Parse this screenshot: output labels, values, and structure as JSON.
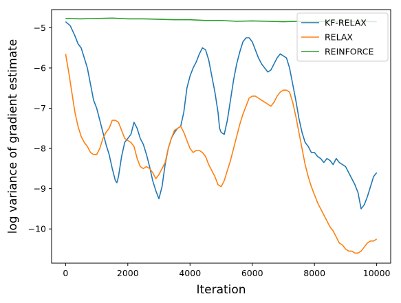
{
  "chart_data": {
    "type": "line",
    "title": "",
    "xlabel": "Iteration",
    "ylabel": "log variance of gradient estimate",
    "xlim": [
      -450,
      10450
    ],
    "ylim": [
      -10.85,
      -4.55
    ],
    "xticks": [
      0,
      2000,
      4000,
      6000,
      8000,
      10000
    ],
    "yticks": [
      -10,
      -9,
      -8,
      -7,
      -6,
      -5
    ],
    "legend_position": "top-right",
    "grid": false,
    "series": [
      {
        "name": "KF-RELAX",
        "color": "#1f77b4",
        "x": [
          0,
          150,
          300,
          400,
          500,
          600,
          700,
          800,
          900,
          1000,
          1100,
          1200,
          1300,
          1400,
          1500,
          1600,
          1650,
          1700,
          1800,
          1900,
          2000,
          2100,
          2200,
          2300,
          2400,
          2500,
          2600,
          2700,
          2800,
          2900,
          3000,
          3100,
          3200,
          3300,
          3400,
          3500,
          3600,
          3700,
          3800,
          3900,
          4000,
          4100,
          4200,
          4300,
          4400,
          4500,
          4600,
          4700,
          4800,
          4900,
          4950,
          5000,
          5100,
          5200,
          5300,
          5400,
          5500,
          5600,
          5700,
          5800,
          5900,
          6000,
          6100,
          6200,
          6300,
          6400,
          6500,
          6600,
          6700,
          6800,
          6900,
          7000,
          7100,
          7200,
          7300,
          7400,
          7500,
          7600,
          7700,
          7800,
          7900,
          8000,
          8100,
          8200,
          8300,
          8400,
          8500,
          8600,
          8700,
          8800,
          8900,
          9000,
          9100,
          9200,
          9300,
          9400,
          9500,
          9600,
          9700,
          9800,
          9900,
          10000
        ],
        "values": [
          -4.85,
          -4.95,
          -5.2,
          -5.4,
          -5.5,
          -5.75,
          -6.0,
          -6.4,
          -6.8,
          -7.0,
          -7.3,
          -7.6,
          -7.9,
          -8.15,
          -8.5,
          -8.8,
          -8.85,
          -8.7,
          -8.2,
          -7.85,
          -7.75,
          -7.65,
          -7.35,
          -7.5,
          -7.75,
          -7.9,
          -8.15,
          -8.45,
          -8.8,
          -9.05,
          -9.25,
          -8.95,
          -8.4,
          -8.0,
          -7.75,
          -7.6,
          -7.5,
          -7.45,
          -7.1,
          -6.5,
          -6.2,
          -6.0,
          -5.85,
          -5.65,
          -5.5,
          -5.55,
          -5.8,
          -6.2,
          -6.6,
          -7.1,
          -7.5,
          -7.6,
          -7.65,
          -7.3,
          -6.8,
          -6.3,
          -5.9,
          -5.6,
          -5.35,
          -5.25,
          -5.25,
          -5.35,
          -5.55,
          -5.75,
          -5.9,
          -6.0,
          -6.1,
          -6.05,
          -5.9,
          -5.75,
          -5.65,
          -5.7,
          -5.75,
          -6.0,
          -6.4,
          -6.8,
          -7.25,
          -7.6,
          -7.85,
          -7.95,
          -8.1,
          -8.1,
          -8.2,
          -8.25,
          -8.35,
          -8.25,
          -8.3,
          -8.4,
          -8.25,
          -8.35,
          -8.4,
          -8.45,
          -8.6,
          -8.75,
          -8.9,
          -9.1,
          -9.5,
          -9.4,
          -9.2,
          -8.95,
          -8.7,
          -8.6
        ]
      },
      {
        "name": "RELAX",
        "color": "#ff7f0e",
        "x": [
          0,
          100,
          200,
          300,
          400,
          500,
          600,
          700,
          800,
          900,
          1000,
          1100,
          1200,
          1300,
          1400,
          1500,
          1600,
          1700,
          1800,
          1900,
          2000,
          2100,
          2200,
          2300,
          2400,
          2500,
          2600,
          2700,
          2800,
          2900,
          3000,
          3100,
          3200,
          3300,
          3400,
          3500,
          3600,
          3700,
          3800,
          3900,
          4000,
          4100,
          4200,
          4300,
          4400,
          4500,
          4600,
          4700,
          4800,
          4900,
          5000,
          5100,
          5200,
          5300,
          5400,
          5500,
          5600,
          5700,
          5800,
          5900,
          6000,
          6100,
          6200,
          6300,
          6400,
          6500,
          6600,
          6700,
          6800,
          6900,
          7000,
          7100,
          7200,
          7300,
          7400,
          7500,
          7600,
          7700,
          7800,
          7900,
          8000,
          8100,
          8200,
          8300,
          8400,
          8500,
          8600,
          8700,
          8800,
          8900,
          9000,
          9100,
          9200,
          9300,
          9400,
          9500,
          9600,
          9700,
          9800,
          9900,
          10000
        ],
        "values": [
          -5.65,
          -6.1,
          -6.6,
          -7.1,
          -7.45,
          -7.7,
          -7.85,
          -7.95,
          -8.1,
          -8.15,
          -8.15,
          -8.0,
          -7.75,
          -7.6,
          -7.5,
          -7.3,
          -7.3,
          -7.35,
          -7.55,
          -7.75,
          -7.8,
          -7.85,
          -7.95,
          -8.25,
          -8.45,
          -8.5,
          -8.45,
          -8.5,
          -8.6,
          -8.75,
          -8.65,
          -8.5,
          -8.35,
          -8.0,
          -7.75,
          -7.55,
          -7.5,
          -7.45,
          -7.6,
          -7.8,
          -8.0,
          -8.1,
          -8.05,
          -8.05,
          -8.1,
          -8.2,
          -8.4,
          -8.55,
          -8.7,
          -8.9,
          -8.95,
          -8.8,
          -8.55,
          -8.3,
          -8.0,
          -7.7,
          -7.4,
          -7.15,
          -6.95,
          -6.75,
          -6.7,
          -6.7,
          -6.75,
          -6.8,
          -6.85,
          -6.9,
          -6.95,
          -6.85,
          -6.7,
          -6.6,
          -6.55,
          -6.55,
          -6.6,
          -6.85,
          -7.2,
          -7.6,
          -8.0,
          -8.4,
          -8.7,
          -8.95,
          -9.15,
          -9.35,
          -9.5,
          -9.65,
          -9.8,
          -9.95,
          -10.05,
          -10.2,
          -10.35,
          -10.4,
          -10.5,
          -10.55,
          -10.55,
          -10.6,
          -10.6,
          -10.55,
          -10.45,
          -10.35,
          -10.3,
          -10.3,
          -10.25
        ]
      },
      {
        "name": "REINFORCE",
        "color": "#2ca02c",
        "x": [
          0,
          500,
          1000,
          1500,
          2000,
          2500,
          3000,
          3500,
          4000,
          4500,
          5000,
          5500,
          6000,
          6500,
          7000,
          7500,
          8000,
          8500,
          9000,
          9500,
          10000
        ],
        "values": [
          -4.77,
          -4.78,
          -4.77,
          -4.76,
          -4.78,
          -4.78,
          -4.79,
          -4.8,
          -4.8,
          -4.82,
          -4.82,
          -4.84,
          -4.83,
          -4.84,
          -4.85,
          -4.84,
          -4.85,
          -4.84,
          -4.84,
          -4.84,
          -4.85
        ]
      }
    ]
  }
}
